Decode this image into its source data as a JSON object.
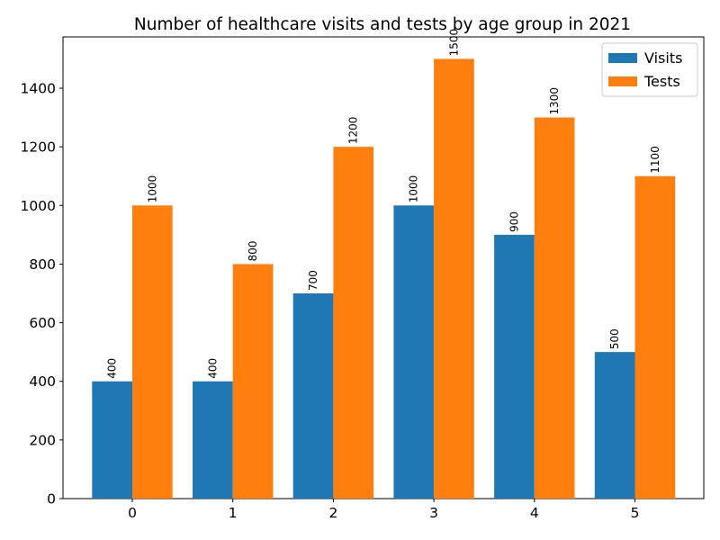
{
  "chart_data": {
    "type": "bar",
    "title": "Number of healthcare visits and tests by age group in 2021",
    "xlabel": "",
    "ylabel": "",
    "categories": [
      "0",
      "1",
      "2",
      "3",
      "4",
      "5"
    ],
    "series": [
      {
        "name": "Visits",
        "color": "#1f77b4",
        "values": [
          400,
          400,
          700,
          1000,
          900,
          500
        ]
      },
      {
        "name": "Tests",
        "color": "#ff7f0e",
        "values": [
          1000,
          800,
          1200,
          1500,
          1300,
          1100
        ]
      }
    ],
    "ylim": [
      0,
      1575
    ],
    "yticks": [
      0,
      200,
      400,
      600,
      800,
      1000,
      1200,
      1400
    ],
    "grid": false,
    "legend": "top-right",
    "data_labels": true
  }
}
